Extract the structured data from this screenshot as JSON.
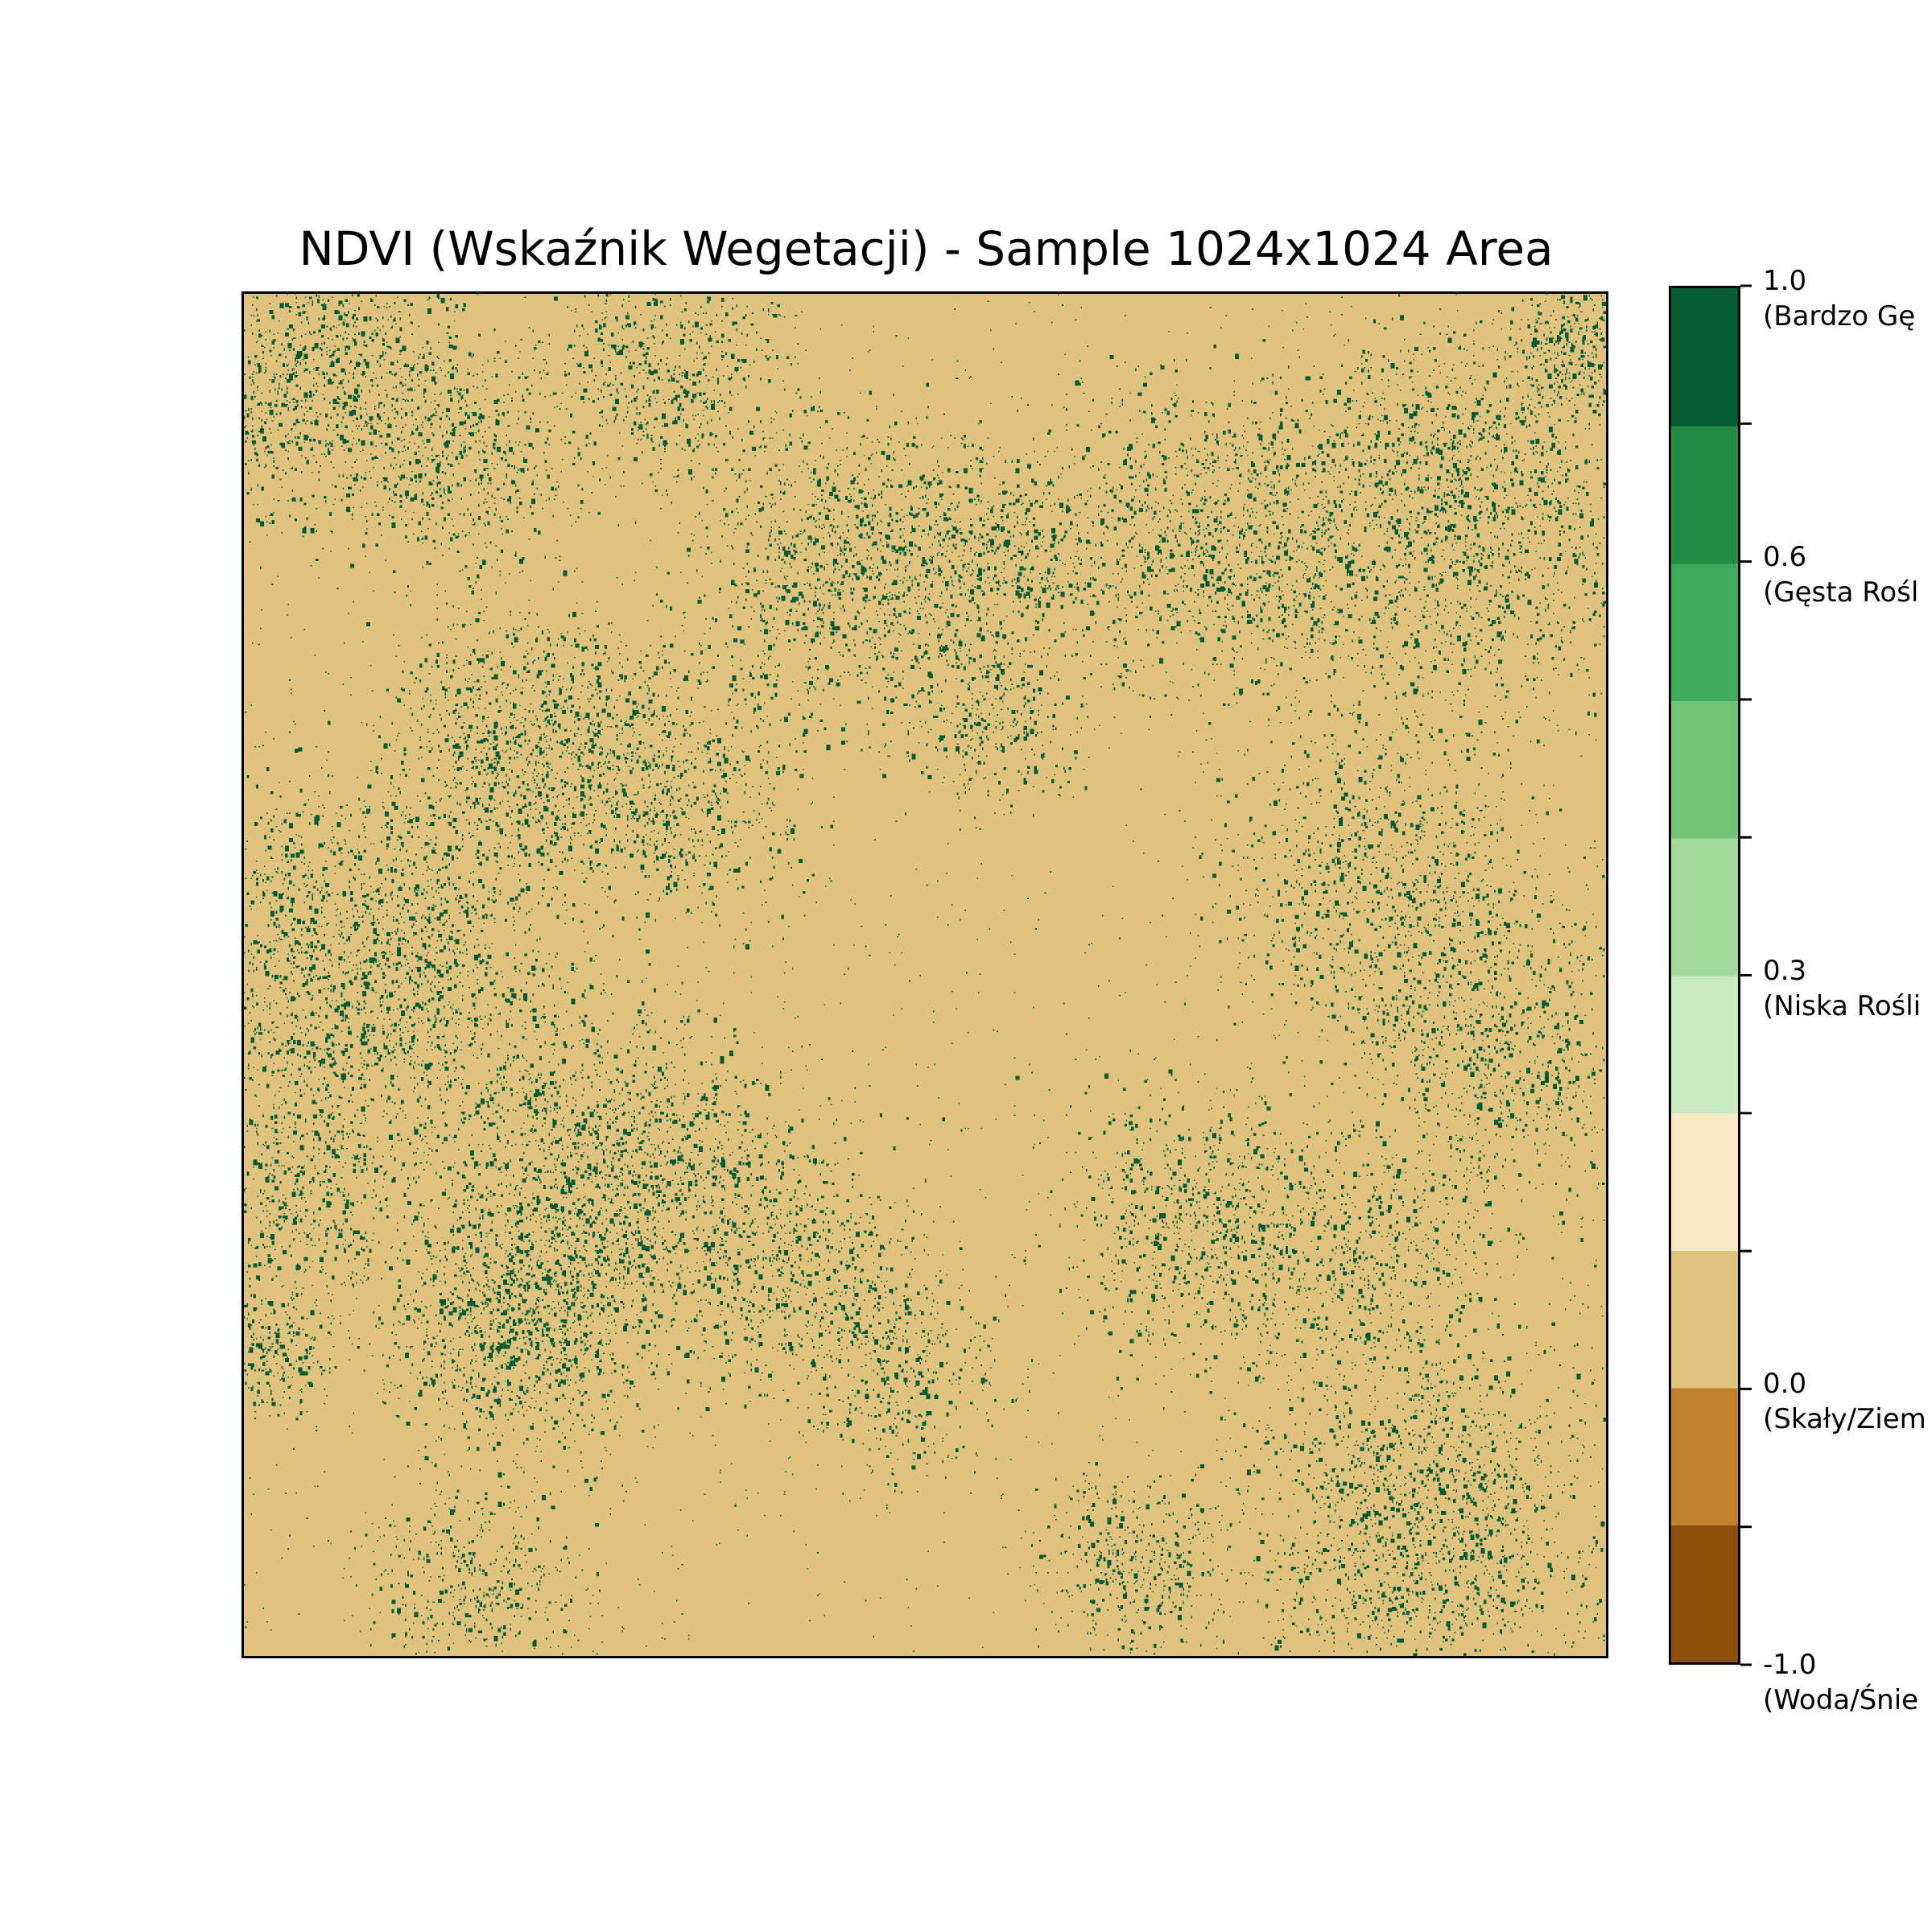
{
  "chart_data": {
    "type": "heatmap",
    "title": "NDVI (Wskaźnik Wegetacji) - Sample 1024x1024 Area",
    "grid": false,
    "xticks": [],
    "yticks": [],
    "colorbar": {
      "placement": "right",
      "range": [
        -1.0,
        1.0
      ],
      "class_colors": [
        "#8c510a",
        "#bf812d",
        "#dfc27d",
        "#f6e8c3",
        "#c7e9c0",
        "#a1d99b",
        "#74c476",
        "#41ab5d",
        "#238b45",
        "#005a32"
      ],
      "tick_labels": [
        {
          "value": 1.0,
          "label": "1.0",
          "sublabel": "(Bardzo Gę"
        },
        {
          "value": 0.6,
          "label": "0.6",
          "sublabel": "(Gęsta Rośl"
        },
        {
          "value": 0.3,
          "label": "0.3",
          "sublabel": "(Niska Rośli"
        },
        {
          "value": 0.0,
          "label": "0.0",
          "sublabel": "(Skały/Ziem"
        },
        {
          "value": -1.0,
          "label": "-1.0",
          "sublabel": "(Woda/Śnie"
        }
      ]
    },
    "pixel_classes": [
      "#dfc27d",
      "#005a32"
    ],
    "dominant_class": "#dfc27d",
    "vegetation_class": "#005a32",
    "vegetation_clusters": [
      {
        "cx": 0.05,
        "cy": 0.06,
        "r": 0.09,
        "density": 0.55
      },
      {
        "cx": 0.16,
        "cy": 0.12,
        "r": 0.07,
        "density": 0.35
      },
      {
        "cx": 0.31,
        "cy": 0.06,
        "r": 0.08,
        "density": 0.35
      },
      {
        "cx": 0.45,
        "cy": 0.2,
        "r": 0.1,
        "density": 0.55
      },
      {
        "cx": 0.56,
        "cy": 0.19,
        "r": 0.06,
        "density": 0.3
      },
      {
        "cx": 0.71,
        "cy": 0.18,
        "r": 0.1,
        "density": 0.5
      },
      {
        "cx": 0.89,
        "cy": 0.17,
        "r": 0.13,
        "density": 0.65
      },
      {
        "cx": 0.98,
        "cy": 0.04,
        "r": 0.05,
        "density": 0.35
      },
      {
        "cx": 0.2,
        "cy": 0.32,
        "r": 0.08,
        "density": 0.45
      },
      {
        "cx": 0.3,
        "cy": 0.36,
        "r": 0.09,
        "density": 0.45
      },
      {
        "cx": 0.55,
        "cy": 0.31,
        "r": 0.06,
        "density": 0.25
      },
      {
        "cx": 0.83,
        "cy": 0.43,
        "r": 0.1,
        "density": 0.4
      },
      {
        "cx": 0.92,
        "cy": 0.55,
        "r": 0.1,
        "density": 0.4
      },
      {
        "cx": 0.09,
        "cy": 0.5,
        "r": 0.13,
        "density": 0.75
      },
      {
        "cx": 0.04,
        "cy": 0.67,
        "r": 0.08,
        "density": 0.3
      },
      {
        "cx": 0.27,
        "cy": 0.65,
        "r": 0.11,
        "density": 0.65
      },
      {
        "cx": 0.2,
        "cy": 0.76,
        "r": 0.08,
        "density": 0.55
      },
      {
        "cx": 0.4,
        "cy": 0.71,
        "r": 0.09,
        "density": 0.35
      },
      {
        "cx": 0.48,
        "cy": 0.79,
        "r": 0.07,
        "density": 0.25
      },
      {
        "cx": 0.7,
        "cy": 0.68,
        "r": 0.09,
        "density": 0.4
      },
      {
        "cx": 0.83,
        "cy": 0.71,
        "r": 0.08,
        "density": 0.3
      },
      {
        "cx": 0.86,
        "cy": 0.9,
        "r": 0.12,
        "density": 0.6
      },
      {
        "cx": 0.65,
        "cy": 0.93,
        "r": 0.06,
        "density": 0.3
      },
      {
        "cx": 0.17,
        "cy": 0.95,
        "r": 0.07,
        "density": 0.3
      },
      {
        "cx": 0.02,
        "cy": 0.78,
        "r": 0.04,
        "density": 0.25
      }
    ]
  }
}
